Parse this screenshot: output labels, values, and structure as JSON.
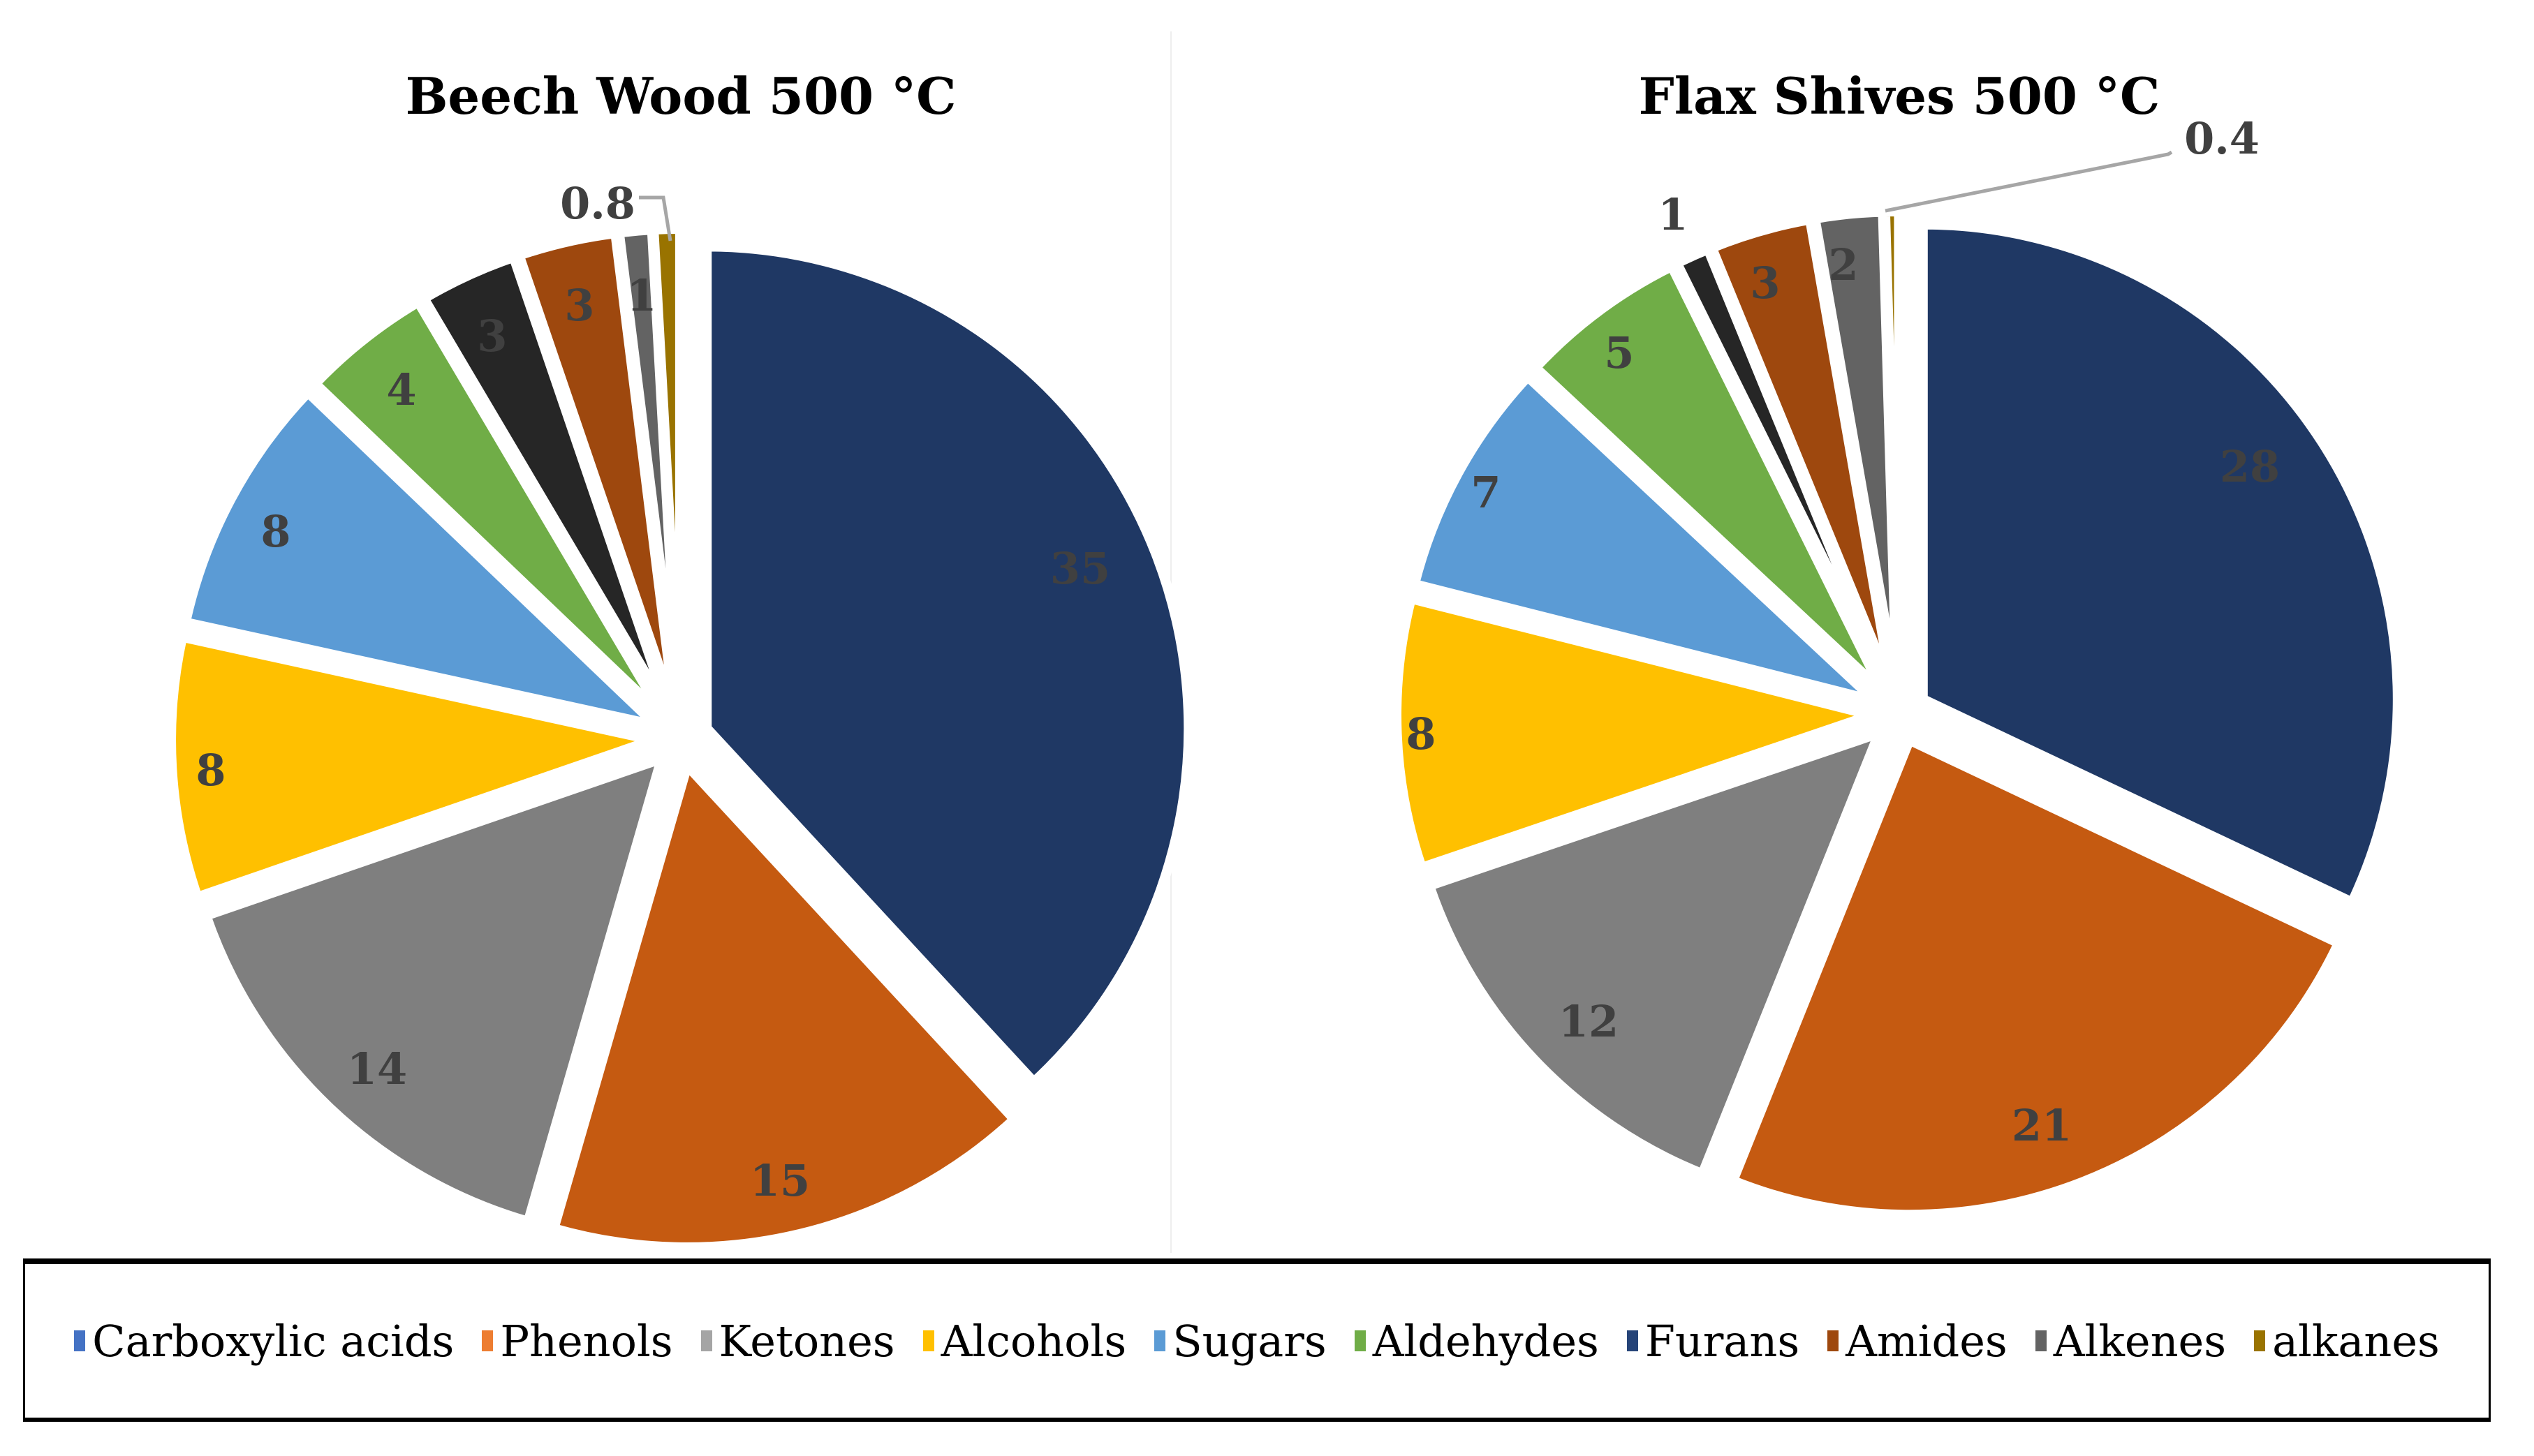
{
  "chart_data": [
    {
      "type": "pie",
      "title": "Beech Wood 500 °C",
      "categories": [
        "Carboxylic acids",
        "Phenols",
        "Ketones",
        "Alcohols",
        "Sugars",
        "Aldehydes",
        "Furans",
        "Amides",
        "Alkenes",
        "alkanes"
      ],
      "values": [
        35,
        15,
        14,
        8,
        8,
        4,
        3,
        3,
        1,
        0.8
      ],
      "labels": [
        "35",
        "15",
        "14",
        "8",
        "8",
        "4",
        "3",
        "3",
        "1",
        "0.8"
      ]
    },
    {
      "type": "pie",
      "title": "Flax Shives 500 °C",
      "categories": [
        "Carboxylic acids",
        "Phenols",
        "Ketones",
        "Alcohols",
        "Sugars",
        "Aldehydes",
        "Furans",
        "Amides",
        "Alkenes",
        "alkanes"
      ],
      "values": [
        28,
        21,
        12,
        8,
        7,
        5,
        1,
        3,
        2,
        0.4
      ],
      "labels": [
        "28",
        "21",
        "12",
        "8",
        "7",
        "5",
        "1",
        "3",
        "2",
        "0.4"
      ]
    }
  ],
  "slice_colors": [
    "#1f3864",
    "#c55a11",
    "#7f7f7f",
    "#ffc000",
    "#5b9bd5",
    "#70ad47",
    "#262626",
    "#9e480e",
    "#636363",
    "#997300"
  ],
  "legend": {
    "placement": "bottom",
    "items": [
      {
        "label": "Carboxylic acids",
        "color": "#4472c4"
      },
      {
        "label": "Phenols",
        "color": "#ed7d31"
      },
      {
        "label": "Ketones",
        "color": "#a5a5a5"
      },
      {
        "label": "Alcohols",
        "color": "#ffc000"
      },
      {
        "label": "Sugars",
        "color": "#5b9bd5"
      },
      {
        "label": "Aldehydes",
        "color": "#70ad47"
      },
      {
        "label": "Furans",
        "color": "#264478"
      },
      {
        "label": "Amides",
        "color": "#9e480e"
      },
      {
        "label": "Alkenes",
        "color": "#636363"
      },
      {
        "label": "alkanes",
        "color": "#997300"
      }
    ]
  }
}
